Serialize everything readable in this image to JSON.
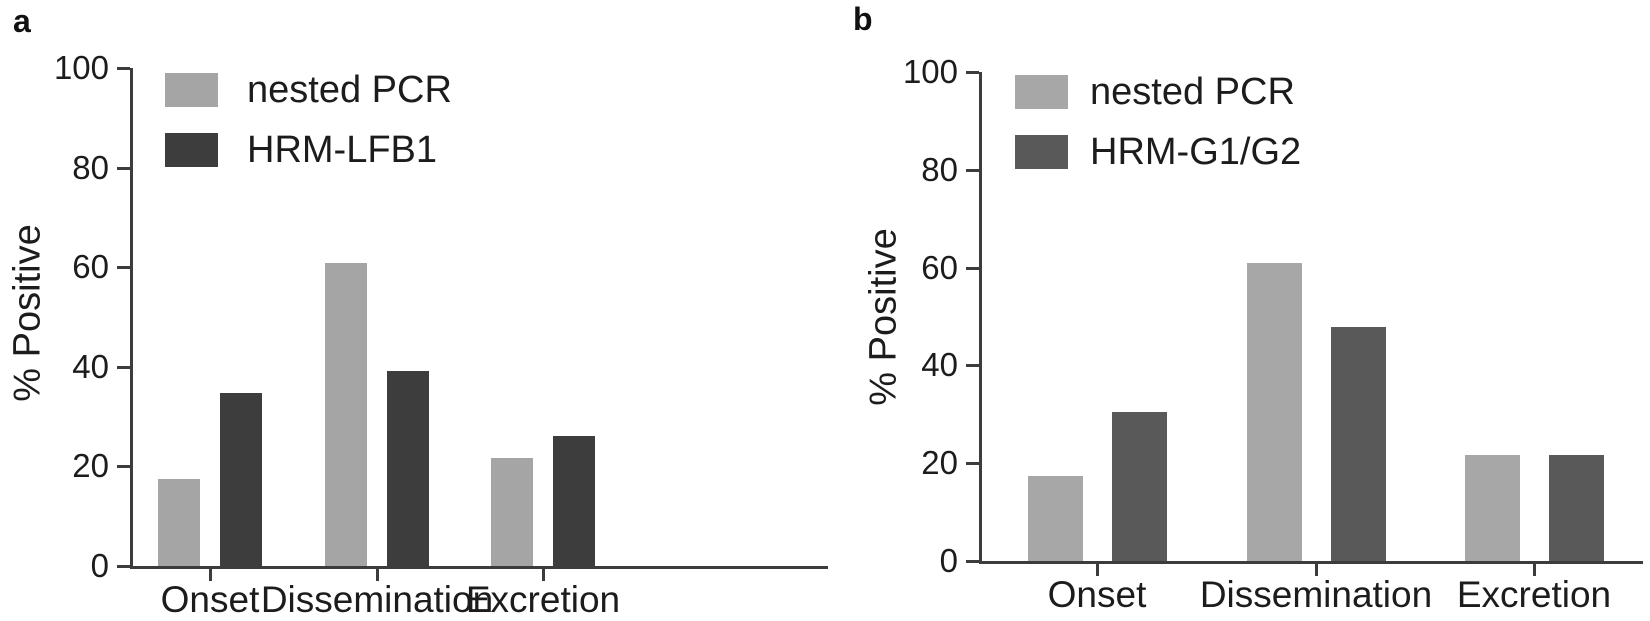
{
  "figure": {
    "background": "#ffffff",
    "text_color": "#1c1c1c",
    "axis_color": "#3c3c3c"
  },
  "chart_data": [
    {
      "type": "bar",
      "panel_label": "a",
      "title": "",
      "xlabel": "",
      "ylabel": "% Positive",
      "categories": [
        "Onset",
        "Dissemination",
        "Excretion"
      ],
      "series": [
        {
          "name": "nested PCR",
          "color": "#a5a5a5",
          "values": [
            17.4,
            60.9,
            21.7
          ]
        },
        {
          "name": "HRM-LFB1",
          "color": "#3d3d3d",
          "values": [
            34.8,
            39.1,
            26.1
          ]
        }
      ],
      "ylim": [
        0,
        100
      ],
      "yticks": [
        0,
        20,
        40,
        60,
        80,
        100
      ],
      "legend_position": "top-left",
      "grid": false
    },
    {
      "type": "bar",
      "panel_label": "b",
      "title": "",
      "xlabel": "",
      "ylabel": "% Positive",
      "categories": [
        "Onset",
        "Dissemination",
        "Excretion"
      ],
      "series": [
        {
          "name": "nested PCR",
          "color": "#a7a7a7",
          "values": [
            17.4,
            60.9,
            21.7
          ]
        },
        {
          "name": "HRM-G1/G2",
          "color": "#595959",
          "values": [
            30.4,
            47.8,
            21.7
          ]
        }
      ],
      "ylim": [
        0,
        100
      ],
      "yticks": [
        0,
        20,
        40,
        60,
        80,
        100
      ],
      "legend_position": "top-left",
      "grid": false
    }
  ]
}
